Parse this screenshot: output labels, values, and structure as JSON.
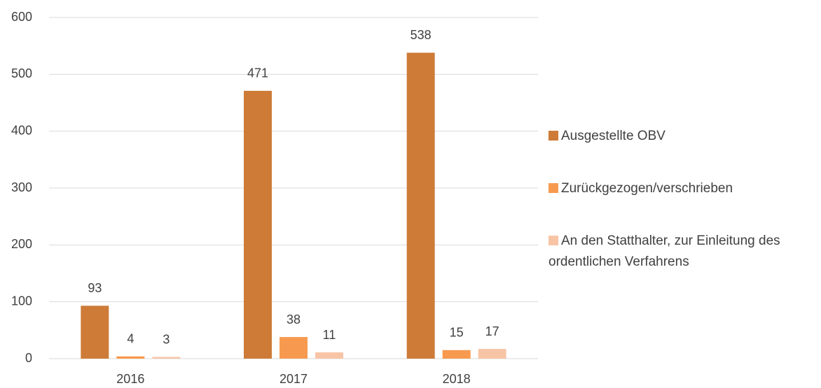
{
  "chart_data": {
    "type": "bar",
    "categories": [
      "2016",
      "2017",
      "2018"
    ],
    "series": [
      {
        "name": "Ausgestellte OBV",
        "color": "#cd7b37",
        "values": [
          93,
          471,
          538
        ]
      },
      {
        "name": "Zurückgezogen/verschrieben",
        "color": "#f79a4f",
        "values": [
          4,
          38,
          15
        ]
      },
      {
        "name": "An den Statthalter, zur Einleitung des ordentlichen Verfahrens",
        "color": "#f8c4a6",
        "values": [
          3,
          11,
          17
        ]
      }
    ],
    "ylim": [
      0,
      600
    ],
    "yticks": [
      0,
      100,
      200,
      300,
      400,
      500,
      600
    ],
    "grid": true,
    "legend": "right"
  }
}
